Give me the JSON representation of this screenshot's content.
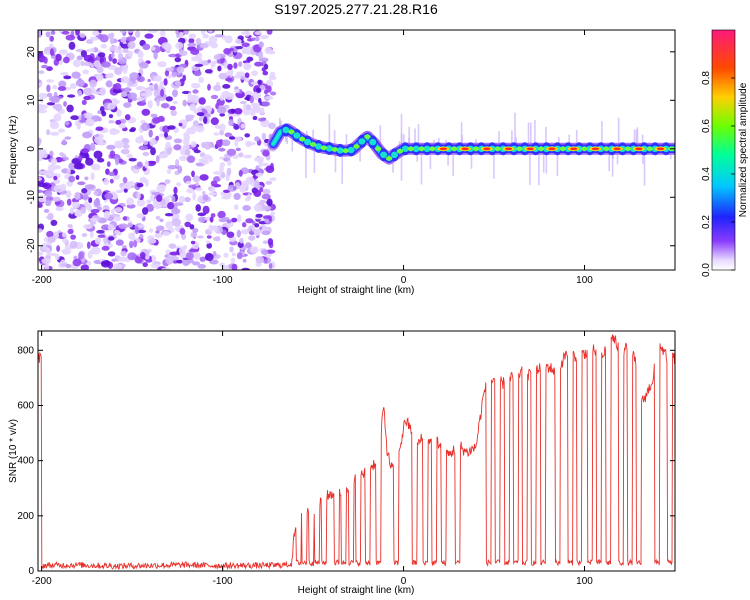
{
  "title": "S197.2025.277.21.28.R16",
  "colors": {
    "snr_line": "#e8302a",
    "axis": "#000000"
  },
  "chart_data": [
    {
      "type": "heatmap",
      "name": "frequency-spectrogram",
      "xlabel": "Height of straight line (km)",
      "ylabel": "Frequency (Hz)",
      "xlim": [
        -202,
        150
      ],
      "ylim": [
        -25,
        24.5
      ],
      "xticks": [
        -200,
        -100,
        0,
        100
      ],
      "yticks": [
        -20,
        -10,
        0,
        10,
        20
      ],
      "noise_region_x": [
        -202,
        -72
      ],
      "signal_trace": {
        "x": [
          -72,
          -68,
          -64,
          -60,
          -56,
          -52,
          -48,
          -44,
          -40,
          -36,
          -32,
          -28,
          -24,
          -20,
          -16,
          -12,
          -8,
          -4,
          0,
          10,
          20,
          30,
          40,
          50,
          60,
          70,
          80,
          90,
          100,
          110,
          120,
          130,
          140,
          150
        ],
        "y": [
          1,
          3.5,
          4,
          3,
          2,
          1.2,
          0.6,
          0.2,
          0,
          -0.3,
          -0.4,
          -0.2,
          1.2,
          2.5,
          1,
          -1,
          -2,
          -1,
          0,
          0,
          0,
          0,
          0,
          0,
          0,
          0,
          0,
          0,
          0,
          0,
          0,
          0,
          0,
          0
        ]
      },
      "colorbar": {
        "label": "Normalized spectral amplitude",
        "range": [
          0,
          1
        ],
        "ticks": [
          "0.0",
          "0.2",
          "0.4",
          "0.6",
          "0.8"
        ]
      }
    },
    {
      "type": "line",
      "name": "snr-vs-height",
      "xlabel": "Height of straight line (km)",
      "ylabel": "SNR (10 * v/v)",
      "xlim": [
        -202,
        150
      ],
      "ylim": [
        0,
        870
      ],
      "xticks": [
        -200,
        -100,
        0,
        100
      ],
      "yticks": [
        0,
        200,
        400,
        600,
        800
      ],
      "series": [
        {
          "name": "SNR",
          "x": [
            -200,
            -180,
            -160,
            -140,
            -120,
            -100,
            -80,
            -70,
            -62,
            -60,
            -57,
            -55,
            -50,
            -45,
            -40,
            -35,
            -30,
            -25,
            -20,
            -15,
            -13,
            -11,
            -9,
            -7,
            -5,
            -3,
            -1,
            1,
            5,
            7,
            9,
            12,
            14,
            16,
            18,
            22,
            25,
            28,
            30,
            35,
            40,
            44,
            45,
            48,
            50,
            55,
            60,
            65,
            70,
            75,
            80,
            85,
            90,
            95,
            100,
            105,
            110,
            115,
            118,
            120,
            125,
            128,
            130,
            135,
            138,
            140,
            145,
            150
          ],
          "y": [
            20,
            22,
            18,
            20,
            22,
            19,
            20,
            21,
            25,
            150,
            200,
            230,
            220,
            260,
            280,
            290,
            310,
            340,
            360,
            400,
            450,
            600,
            430,
            380,
            360,
            420,
            480,
            550,
            500,
            450,
            470,
            500,
            480,
            460,
            470,
            450,
            420,
            440,
            460,
            430,
            450,
            630,
            660,
            680,
            700,
            680,
            700,
            720,
            710,
            730,
            740,
            720,
            790,
            780,
            790,
            800,
            780,
            850,
            820,
            790,
            820,
            760,
            590,
            650,
            700,
            840,
            780,
            770
          ]
        }
      ],
      "dropout_x": [
        -58,
        -55,
        -51,
        -48,
        -44,
        -37,
        -33,
        -29,
        -25,
        -20,
        -14,
        -4,
        6,
        12,
        17,
        22,
        30,
        47,
        52,
        57,
        62,
        67,
        72,
        77,
        85,
        92,
        97,
        103,
        108,
        113,
        120,
        125,
        130,
        140,
        147
      ],
      "dropout_level": 30
    }
  ]
}
